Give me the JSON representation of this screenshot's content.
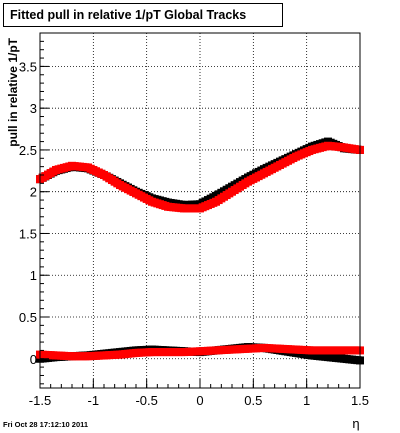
{
  "chart_data": {
    "type": "scatter",
    "title": "Fitted pull in relative 1/pT  Global Tracks",
    "xlabel": "η",
    "ylabel": "pull in relative 1/pT",
    "xlim": [
      -1.5,
      1.5
    ],
    "ylim": [
      -0.35,
      3.9
    ],
    "grid": true,
    "x_ticks": [
      "-1.5",
      "-1",
      "-0.5",
      "0",
      "0.5",
      "1",
      "1.5"
    ],
    "x_tick_values": [
      -1.5,
      -1,
      -0.5,
      0,
      0.5,
      1,
      1.5
    ],
    "y_ticks": [
      "0",
      "0.5",
      "1",
      "1.5",
      "2",
      "2.5",
      "3",
      "3.5"
    ],
    "y_tick_values": [
      0,
      0.5,
      1,
      1.5,
      2,
      2.5,
      3,
      3.5
    ],
    "x": [
      -1.5,
      -1.35,
      -1.2,
      -1.05,
      -0.9,
      -0.75,
      -0.6,
      -0.45,
      -0.3,
      -0.15,
      0.0,
      0.15,
      0.3,
      0.45,
      0.6,
      0.75,
      0.9,
      1.05,
      1.2,
      1.35,
      1.5
    ],
    "series": [
      {
        "color": "#000000",
        "marker": "square",
        "values": [
          2.15,
          2.25,
          2.3,
          2.28,
          2.2,
          2.1,
          2.0,
          1.92,
          1.87,
          1.84,
          1.85,
          1.95,
          2.06,
          2.17,
          2.27,
          2.36,
          2.45,
          2.54,
          2.6,
          2.52,
          2.5
        ]
      },
      {
        "color": "#ff0000",
        "marker": "square",
        "values": [
          2.15,
          2.26,
          2.31,
          2.29,
          2.2,
          2.08,
          1.98,
          1.88,
          1.82,
          1.8,
          1.8,
          1.88,
          2.0,
          2.12,
          2.22,
          2.32,
          2.42,
          2.5,
          2.55,
          2.53,
          2.5
        ]
      },
      {
        "color": "#000000",
        "marker": "square",
        "values": [
          0.0,
          0.02,
          0.03,
          0.04,
          0.06,
          0.08,
          0.1,
          0.11,
          0.1,
          0.09,
          0.08,
          0.1,
          0.12,
          0.14,
          0.13,
          0.1,
          0.07,
          0.04,
          0.02,
          0.0,
          -0.02
        ]
      },
      {
        "color": "#ff0000",
        "marker": "square",
        "values": [
          0.05,
          0.04,
          0.03,
          0.03,
          0.04,
          0.05,
          0.07,
          0.08,
          0.08,
          0.08,
          0.09,
          0.1,
          0.11,
          0.12,
          0.13,
          0.12,
          0.11,
          0.1,
          0.1,
          0.1,
          0.1
        ]
      }
    ]
  },
  "timestamp": "Fri Oct 28 17:12:10 2011",
  "colors": {
    "series_black": "#000000",
    "series_red": "#ff0000",
    "frame": "#000000",
    "background": "#ffffff"
  }
}
